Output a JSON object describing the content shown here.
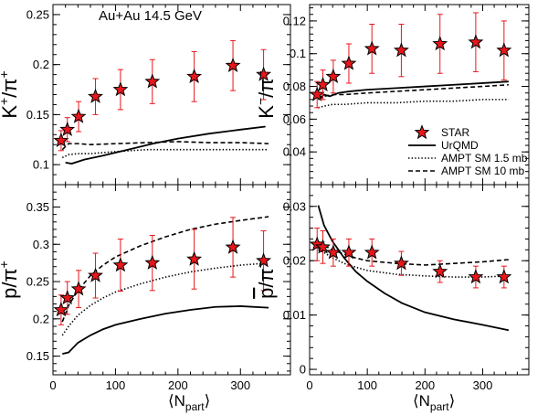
{
  "figure": {
    "annotation": "Au+Au 14.5 GeV",
    "xlabel_main": "⟨N",
    "xlabel_sub": "part",
    "xlabel_close": "⟩"
  },
  "legend": {
    "items": [
      {
        "label": "STAR",
        "kind": "marker"
      },
      {
        "label": "UrQMD",
        "kind": "solid"
      },
      {
        "label": "AMPT SM 1.5 mb",
        "kind": "dotted"
      },
      {
        "label": "AMPT SM 10 mb",
        "kind": "dashed"
      }
    ]
  },
  "colors": {
    "star_fill": "#e8161b",
    "error_bar": "#e8161b",
    "line": "#000000"
  },
  "chart_data": [
    {
      "id": "kplus",
      "type": "scatter",
      "ylabel_parts": [
        {
          "t": "K",
          "dy": 0
        },
        {
          "t": "+",
          "sup": true
        },
        {
          "t": "/π",
          "base": true
        },
        {
          "t": "+",
          "sup": true
        }
      ],
      "xlim": [
        0,
        380
      ],
      "ylim": [
        0.08,
        0.26
      ],
      "xticks": [
        0,
        100,
        200,
        300
      ],
      "xtick_labels": [
        "",
        "",
        "",
        ""
      ],
      "yticks": [
        0.1,
        0.15,
        0.2,
        0.25
      ],
      "ytick_labels": [
        "0.1",
        "0.15",
        "0.2",
        "0.25"
      ],
      "star": {
        "x": [
          13,
          23,
          41,
          68,
          108,
          159,
          226,
          288,
          337
        ],
        "y": [
          0.124,
          0.135,
          0.148,
          0.168,
          0.175,
          0.183,
          0.188,
          0.199,
          0.19
        ],
        "err": [
          0.01,
          0.012,
          0.015,
          0.018,
          0.02,
          0.022,
          0.025,
          0.025,
          0.025
        ]
      },
      "series": [
        {
          "name": "UrQMD",
          "style": "solid",
          "x": [
            20,
            30,
            50,
            80,
            120,
            160,
            200,
            250,
            300,
            340
          ],
          "y": [
            0.102,
            0.101,
            0.105,
            0.109,
            0.115,
            0.121,
            0.126,
            0.131,
            0.135,
            0.138
          ]
        },
        {
          "name": "AMPT SM 1.5 mb",
          "style": "dotted",
          "x": [
            15,
            25,
            40,
            60,
            100,
            150,
            200,
            250,
            300,
            345
          ],
          "y": [
            0.107,
            0.11,
            0.111,
            0.111,
            0.113,
            0.115,
            0.115,
            0.115,
            0.115,
            0.115
          ]
        },
        {
          "name": "AMPT SM 10 mb",
          "style": "dashed",
          "x": [
            15,
            25,
            40,
            60,
            100,
            150,
            200,
            250,
            300,
            345
          ],
          "y": [
            0.115,
            0.121,
            0.121,
            0.12,
            0.121,
            0.122,
            0.123,
            0.122,
            0.122,
            0.121
          ]
        }
      ]
    },
    {
      "id": "kminus",
      "type": "scatter",
      "ylabel_parts": [
        {
          "t": "K",
          "dy": 0
        },
        {
          "t": "−",
          "sup": true
        },
        {
          "t": "/π",
          "base": true
        },
        {
          "t": "−",
          "sup": true
        }
      ],
      "xlim": [
        0,
        380
      ],
      "ylim": [
        0.02,
        0.13
      ],
      "xticks": [
        0,
        100,
        200,
        300
      ],
      "xtick_labels": [
        "",
        "",
        "",
        ""
      ],
      "yticks": [
        0.04,
        0.06,
        0.08,
        0.1,
        0.12
      ],
      "ytick_labels": [
        "0.04",
        "0.06",
        "0.08",
        "0.1",
        "0.12"
      ],
      "star": {
        "x": [
          13,
          23,
          41,
          68,
          108,
          159,
          226,
          288,
          337
        ],
        "y": [
          0.075,
          0.081,
          0.086,
          0.094,
          0.103,
          0.102,
          0.106,
          0.107,
          0.102
        ],
        "err": [
          0.008,
          0.009,
          0.01,
          0.012,
          0.015,
          0.016,
          0.018,
          0.018,
          0.018
        ]
      },
      "series": [
        {
          "name": "UrQMD",
          "style": "solid",
          "x": [
            15,
            25,
            35,
            50,
            70,
            100,
            150,
            200,
            250,
            300,
            345
          ],
          "y": [
            0.072,
            0.075,
            0.074,
            0.076,
            0.077,
            0.078,
            0.079,
            0.08,
            0.081,
            0.082,
            0.083
          ]
        },
        {
          "name": "AMPT SM 1.5 mb",
          "style": "dotted",
          "x": [
            15,
            25,
            40,
            60,
            100,
            150,
            200,
            250,
            300,
            345
          ],
          "y": [
            0.067,
            0.068,
            0.069,
            0.069,
            0.07,
            0.07,
            0.071,
            0.071,
            0.072,
            0.072
          ]
        },
        {
          "name": "AMPT SM 10 mb",
          "style": "dashed",
          "x": [
            15,
            25,
            40,
            60,
            100,
            150,
            200,
            250,
            300,
            345
          ],
          "y": [
            0.072,
            0.074,
            0.075,
            0.075,
            0.076,
            0.077,
            0.078,
            0.079,
            0.08,
            0.081
          ]
        }
      ]
    },
    {
      "id": "pplus",
      "type": "scatter",
      "ylabel_parts": [
        {
          "t": "p/π",
          "dy": 0
        },
        {
          "t": "+",
          "sup": true
        }
      ],
      "xlim": [
        0,
        380
      ],
      "ylim": [
        0.125,
        0.38
      ],
      "xticks": [
        0,
        100,
        200,
        300
      ],
      "xtick_labels": [
        "0",
        "100",
        "200",
        "300"
      ],
      "yticks": [
        0.15,
        0.2,
        0.25,
        0.3,
        0.35
      ],
      "ytick_labels": [
        "0.15",
        "0.2",
        "0.25",
        "0.3",
        "0.35"
      ],
      "star": {
        "x": [
          13,
          23,
          41,
          68,
          108,
          159,
          226,
          288,
          337
        ],
        "y": [
          0.212,
          0.228,
          0.24,
          0.258,
          0.272,
          0.275,
          0.28,
          0.296,
          0.278
        ],
        "err": [
          0.02,
          0.022,
          0.025,
          0.03,
          0.035,
          0.037,
          0.04,
          0.04,
          0.04
        ]
      },
      "series": [
        {
          "name": "UrQMD",
          "style": "solid",
          "x": [
            15,
            25,
            40,
            60,
            80,
            100,
            140,
            180,
            220,
            260,
            300,
            345
          ],
          "y": [
            0.153,
            0.155,
            0.168,
            0.178,
            0.186,
            0.192,
            0.2,
            0.207,
            0.212,
            0.216,
            0.217,
            0.215
          ]
        },
        {
          "name": "AMPT SM 1.5 mb",
          "style": "dotted",
          "x": [
            15,
            25,
            40,
            60,
            80,
            100,
            140,
            180,
            220,
            260,
            300,
            345
          ],
          "y": [
            0.178,
            0.19,
            0.205,
            0.218,
            0.228,
            0.236,
            0.247,
            0.256,
            0.263,
            0.268,
            0.272,
            0.275
          ]
        },
        {
          "name": "AMPT SM 10 mb",
          "style": "dashed",
          "x": [
            15,
            25,
            40,
            60,
            80,
            100,
            140,
            180,
            220,
            260,
            300,
            345
          ],
          "y": [
            0.196,
            0.218,
            0.238,
            0.258,
            0.272,
            0.283,
            0.298,
            0.31,
            0.32,
            0.327,
            0.332,
            0.337
          ]
        }
      ]
    },
    {
      "id": "pbar",
      "type": "scatter",
      "ylabel_parts": [
        {
          "t": "p",
          "overline": true
        },
        {
          "t": "/π",
          "base": true
        },
        {
          "t": "−",
          "sup": true
        }
      ],
      "xlim": [
        0,
        380
      ],
      "ylim": [
        -0.001,
        0.034
      ],
      "xticks": [
        0,
        100,
        200,
        300
      ],
      "xtick_labels": [
        "0",
        "100",
        "200",
        "300"
      ],
      "yticks": [
        0,
        0.01,
        0.02,
        0.03
      ],
      "ytick_labels": [
        "0",
        "0.01",
        "0.02",
        "0.03"
      ],
      "star": {
        "x": [
          13,
          23,
          41,
          68,
          108,
          159,
          226,
          288,
          337
        ],
        "y": [
          0.023,
          0.0225,
          0.0215,
          0.0215,
          0.0215,
          0.0195,
          0.018,
          0.017,
          0.017
        ],
        "err": [
          0.003,
          0.003,
          0.0025,
          0.0025,
          0.0025,
          0.0022,
          0.002,
          0.002,
          0.002
        ]
      },
      "series": [
        {
          "name": "UrQMD",
          "style": "solid",
          "x": [
            15,
            25,
            40,
            60,
            80,
            100,
            130,
            160,
            200,
            250,
            300,
            345
          ],
          "y": [
            0.0302,
            0.0265,
            0.0235,
            0.0205,
            0.018,
            0.0162,
            0.014,
            0.0122,
            0.0105,
            0.0092,
            0.0082,
            0.0072
          ]
        },
        {
          "name": "AMPT SM 1.5 mb",
          "style": "dotted",
          "x": [
            15,
            25,
            40,
            60,
            80,
            100,
            150,
            200,
            250,
            300,
            345
          ],
          "y": [
            0.022,
            0.0215,
            0.0205,
            0.0195,
            0.0188,
            0.0182,
            0.0175,
            0.0172,
            0.017,
            0.017,
            0.0172
          ]
        },
        {
          "name": "AMPT SM 10 mb",
          "style": "dashed",
          "x": [
            15,
            25,
            40,
            60,
            80,
            100,
            150,
            200,
            250,
            300,
            345
          ],
          "y": [
            0.0235,
            0.0228,
            0.022,
            0.0212,
            0.0205,
            0.02,
            0.0195,
            0.0192,
            0.0195,
            0.0198,
            0.0202
          ]
        }
      ]
    }
  ]
}
